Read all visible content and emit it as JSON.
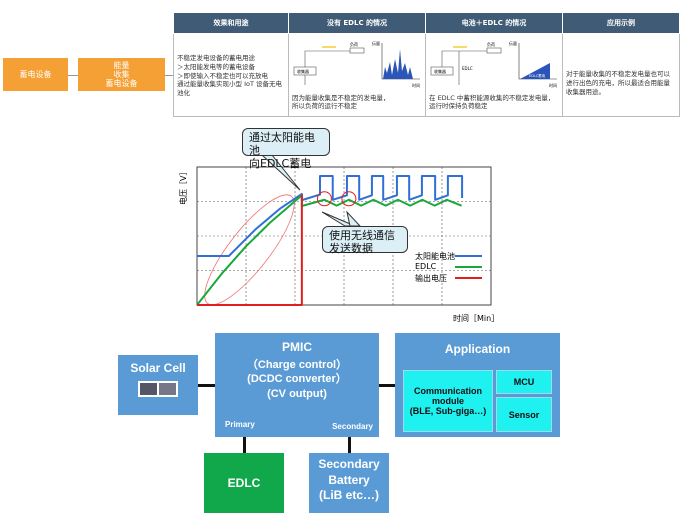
{
  "flow": {
    "box1": "蓄电设备",
    "box2": "能量\n收集\n蓄电设备"
  },
  "table": {
    "headers": [
      "效果和用途",
      "没有 EDLC 的情况",
      "电池＋EDLC 的情况",
      "应用示例"
    ],
    "col1": "不稳定发电设备的蓄电用途\n＞太阳能发电等的蓄电设备\n＞即使输入不稳定也可以充放电\n通过能量收集实现小型 IoT 设备无电池化",
    "col2_caption": "因为能量收集是不稳定的发电量，\n所以负荷的运行不稳定",
    "col2_fig": {
      "load": "负荷",
      "source": "收集器",
      "yaxis": "伝量",
      "xaxis": "时间"
    },
    "col3_caption": "在 EDLC 中蓄积能源收集的不稳定发电量，\n运行时保持负荷稳定",
    "col3_fig": {
      "load": "负荷",
      "source": "收集器",
      "edlc": "EDLC",
      "yaxis": "伝量",
      "xaxis": "时间",
      "area": "EDLC蓄电"
    },
    "col4": "对于能量收集的不稳定发电量也可以进行出色的充电，所以最适合用能量收集器用途。"
  },
  "chart_data": {
    "type": "line",
    "xlabel": "时间［Min］",
    "ylabel": "电压［V］",
    "xlim": [
      0,
      6
    ],
    "ylim": [
      0,
      4
    ],
    "grid": true,
    "legend": "bottom-right",
    "annotations": [
      "通过太阳能电池\n向EDLC蓄电",
      "使用无线通信\n发送数据"
    ],
    "series": [
      {
        "name": "太阳能电池",
        "color": "#2f6fd6",
        "points": [
          [
            0,
            1.42
          ],
          [
            0.65,
            1.42
          ],
          [
            1.2,
            2.2
          ],
          [
            1.7,
            2.8
          ],
          [
            2.14,
            3.22
          ],
          [
            2.14,
            3.04
          ],
          [
            2.51,
            3.2
          ],
          [
            2.51,
            3.74
          ],
          [
            2.77,
            3.74
          ],
          [
            2.77,
            3.05
          ],
          [
            3.06,
            3.18
          ],
          [
            3.06,
            3.74
          ],
          [
            3.31,
            3.74
          ],
          [
            3.31,
            3.05
          ],
          [
            3.57,
            3.18
          ],
          [
            3.57,
            3.74
          ],
          [
            3.8,
            3.74
          ],
          [
            3.8,
            3.05
          ],
          [
            4.08,
            3.18
          ],
          [
            4.08,
            3.74
          ],
          [
            4.33,
            3.74
          ],
          [
            4.33,
            3.05
          ],
          [
            4.59,
            3.18
          ],
          [
            4.59,
            3.74
          ],
          [
            4.86,
            3.74
          ],
          [
            4.86,
            3.05
          ],
          [
            5.12,
            3.18
          ],
          [
            5.12,
            3.74
          ],
          [
            5.41,
            3.74
          ],
          [
            5.41,
            3.1
          ]
        ]
      },
      {
        "name": "EDLC",
        "color": "#1aa83a",
        "points": [
          [
            0,
            0
          ],
          [
            0.5,
            0.9
          ],
          [
            1,
            1.7
          ],
          [
            1.5,
            2.4
          ],
          [
            2.14,
            3.18
          ],
          [
            2.14,
            2.87
          ],
          [
            2.6,
            3.05
          ],
          [
            2.85,
            2.88
          ],
          [
            3.1,
            3.05
          ],
          [
            3.35,
            2.88
          ],
          [
            3.6,
            3.05
          ],
          [
            3.85,
            2.88
          ],
          [
            4.1,
            3.05
          ],
          [
            4.35,
            2.88
          ],
          [
            4.6,
            3.05
          ],
          [
            4.85,
            2.88
          ],
          [
            5.1,
            3.05
          ],
          [
            5.4,
            2.88
          ]
        ]
      },
      {
        "name": "输出电压",
        "color": "#e02020",
        "points": [
          [
            0,
            0
          ],
          [
            2.14,
            0
          ],
          [
            2.14,
            3.2
          ]
        ]
      }
    ]
  },
  "block": {
    "solar": "Solar Cell",
    "pmic_title": "PMIC",
    "pmic_lines": "（Charge control）\n(DCDC converter）\n(CV output)",
    "primary": "Primary",
    "secondary": "Secondary",
    "app": "Application",
    "comm": "Communication\nmodule\n(BLE, Sub-giga…)",
    "mcu": "MCU",
    "sensor": "Sensor",
    "edlc": "EDLC",
    "battery": "Secondary\nBattery\n(LiB etc…)"
  },
  "colors": {
    "orange": "#f5a035",
    "header": "#3f5b75",
    "block_blue": "#5b9bd5",
    "cyan": "#1ff0f0",
    "green": "#10a84a"
  }
}
